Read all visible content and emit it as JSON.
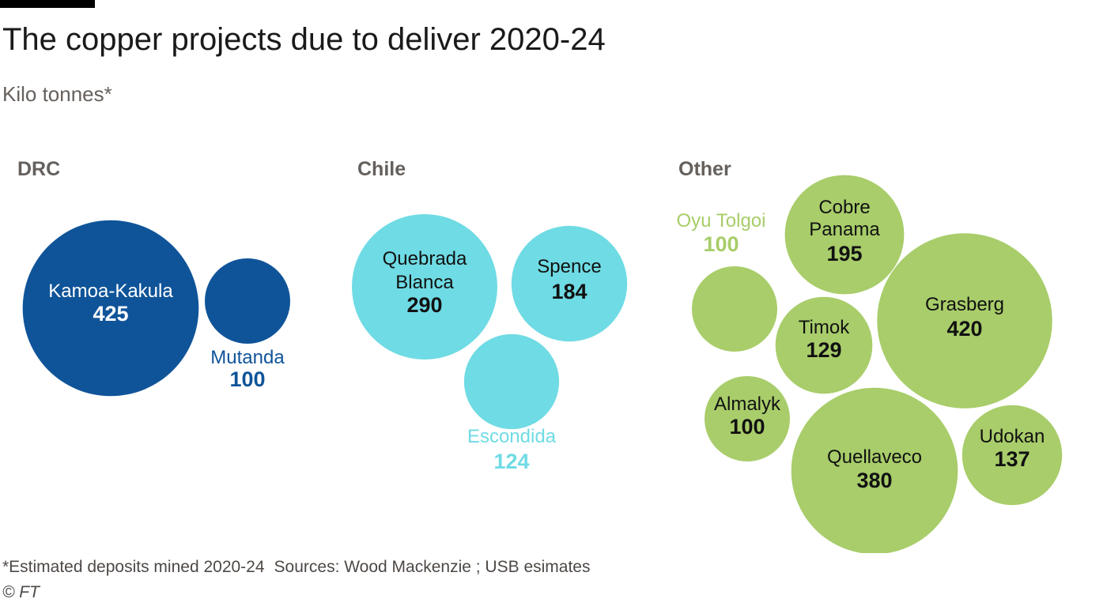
{
  "title": "The copper projects due to deliver 2020-24",
  "subtitle": "Kilo tonnes*",
  "footnote": "*Estimated deposits mined 2020-24",
  "sources": "Sources: Wood Mackenzie ; USB esimates",
  "copyright": "© FT",
  "colors": {
    "drc": "#0f5499",
    "chile": "#6fdbe4",
    "other": "#a8cd6a",
    "group_label": "#66605c"
  },
  "chart_data": {
    "type": "bubble",
    "unit": "Kilo tonnes",
    "groups": [
      {
        "name": "DRC",
        "items": [
          {
            "name": "Kamoa-Kakula",
            "value": 425
          },
          {
            "name": "Mutanda",
            "value": 100
          }
        ]
      },
      {
        "name": "Chile",
        "items": [
          {
            "name": "Quebrada Blanca",
            "value": 290
          },
          {
            "name": "Spence",
            "value": 184
          },
          {
            "name": "Escondida",
            "value": 124
          }
        ]
      },
      {
        "name": "Other",
        "items": [
          {
            "name": "Oyu Tolgoi",
            "value": 100
          },
          {
            "name": "Cobre Panama",
            "value": 195
          },
          {
            "name": "Grasberg",
            "value": 420
          },
          {
            "name": "Timok",
            "value": 129
          },
          {
            "name": "Almalyk",
            "value": 100
          },
          {
            "name": "Quellaveco",
            "value": 380
          },
          {
            "name": "Udokan",
            "value": 137
          }
        ]
      }
    ]
  }
}
